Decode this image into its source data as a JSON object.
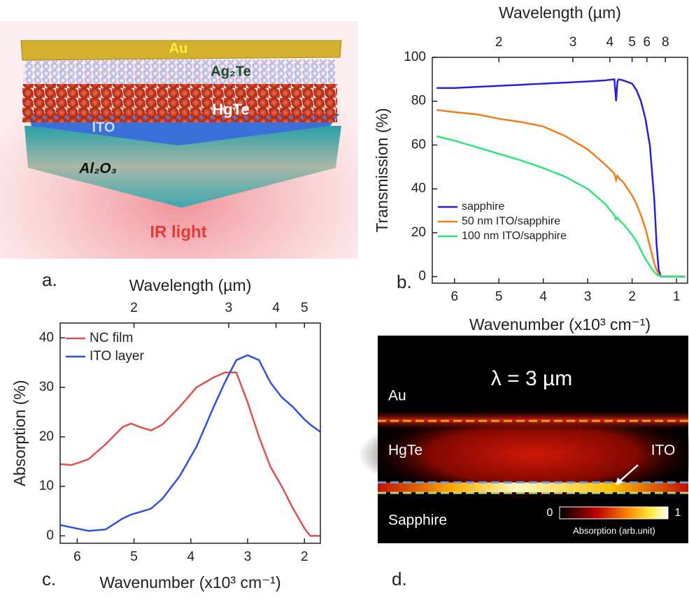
{
  "illustration": {
    "panel_label": "a.",
    "labels": {
      "au": "Au",
      "ag2te": "Ag₂Te",
      "hgte": "HgTe",
      "ito": "ITO",
      "al2o3": "Al₂O₃",
      "ir_light": "IR light"
    }
  },
  "chart_data": [
    {
      "type": "line",
      "panel_label": "b.",
      "x2label": "Wavelength (µm)",
      "xlabel": "Wavenumber (x10³ cm⁻¹)",
      "ylabel": "Transmission (%)",
      "x": [
        6.4,
        6.0,
        5.5,
        5.0,
        4.5,
        4.0,
        3.5,
        3.0,
        2.6,
        2.4,
        2.36,
        2.33,
        2.3,
        2.2,
        2.0,
        1.9,
        1.8,
        1.7,
        1.6,
        1.5,
        1.45,
        1.4,
        1.35,
        1.3,
        1.2,
        1.0,
        0.8
      ],
      "series": [
        {
          "name": "sapphire",
          "color": "#2a1fd6",
          "values": [
            86,
            86,
            86.5,
            87,
            87.5,
            88,
            88.5,
            89,
            89.5,
            90,
            80,
            89,
            90,
            89.5,
            88,
            85,
            80,
            72,
            60,
            35,
            15,
            3,
            0,
            0,
            0,
            0,
            0
          ]
        },
        {
          "name": "50 nm ITO/sapphire",
          "color": "#f07d1a",
          "values": [
            76,
            75,
            74,
            72,
            70.5,
            68.5,
            64,
            58,
            51,
            47,
            44,
            46,
            45,
            43,
            37,
            33,
            28,
            22,
            14,
            6,
            3,
            1,
            0,
            0,
            0,
            0,
            0
          ]
        },
        {
          "name": "100 nm ITO/sapphire",
          "color": "#2ee67a",
          "values": [
            64,
            62,
            59,
            56,
            53,
            49.5,
            45.5,
            40,
            33,
            28,
            26,
            27,
            26,
            24,
            19,
            16,
            12,
            8,
            5,
            2,
            1,
            0.5,
            0,
            0,
            0,
            0,
            0
          ]
        }
      ],
      "xlim": [
        6.5,
        0.75
      ],
      "xticks": [
        6,
        5,
        4,
        3,
        2,
        1
      ],
      "x2ticks": [
        2,
        3,
        4,
        5,
        6,
        8
      ],
      "ylim": [
        -3,
        100
      ],
      "yticks": [
        0,
        20,
        40,
        60,
        80,
        100
      ],
      "legend": "lower left"
    },
    {
      "type": "line",
      "panel_label": "c.",
      "x2label": "Wavelength (µm)",
      "xlabel": "Wavenumber (x10³ cm⁻¹)",
      "ylabel": "Absorption (%)",
      "x": [
        6.3,
        6.1,
        5.8,
        5.5,
        5.2,
        5.05,
        4.9,
        4.7,
        4.5,
        4.2,
        3.9,
        3.6,
        3.4,
        3.2,
        3.0,
        2.8,
        2.6,
        2.4,
        2.2,
        2.0,
        1.9,
        1.72
      ],
      "series": [
        {
          "name": "NC film",
          "color": "#e05050",
          "values": [
            14.5,
            14.3,
            15.5,
            18.5,
            22,
            22.7,
            22,
            21.3,
            22.5,
            26,
            30,
            32,
            33,
            33,
            27,
            20,
            14,
            10,
            5.5,
            1.5,
            0,
            0
          ]
        },
        {
          "name": "ITO layer",
          "color": "#2f4fe0",
          "values": [
            2.2,
            1.7,
            1.0,
            1.3,
            3.5,
            4.3,
            4.8,
            5.5,
            7.5,
            12,
            18,
            26,
            31,
            35.5,
            36.5,
            35.5,
            31,
            28,
            26,
            23.5,
            22.5,
            21
          ]
        }
      ],
      "xlim": [
        6.3,
        1.72
      ],
      "xticks": [
        6,
        5,
        4,
        3,
        2
      ],
      "x2ticks": [
        2,
        3,
        4,
        5
      ],
      "ylim": [
        -1.5,
        43
      ],
      "yticks": [
        0,
        10,
        20,
        30,
        40
      ],
      "legend": "upper left"
    }
  ],
  "field_map": {
    "panel_label": "d.",
    "title": "λ = 3 µm",
    "labels": {
      "au": "Au",
      "hgte": "HgTe",
      "ito": "ITO",
      "sapphire": "Sapphire"
    },
    "colorbar": {
      "ticks": [
        0,
        1
      ],
      "label": "Absorption (arb.unit)"
    }
  }
}
